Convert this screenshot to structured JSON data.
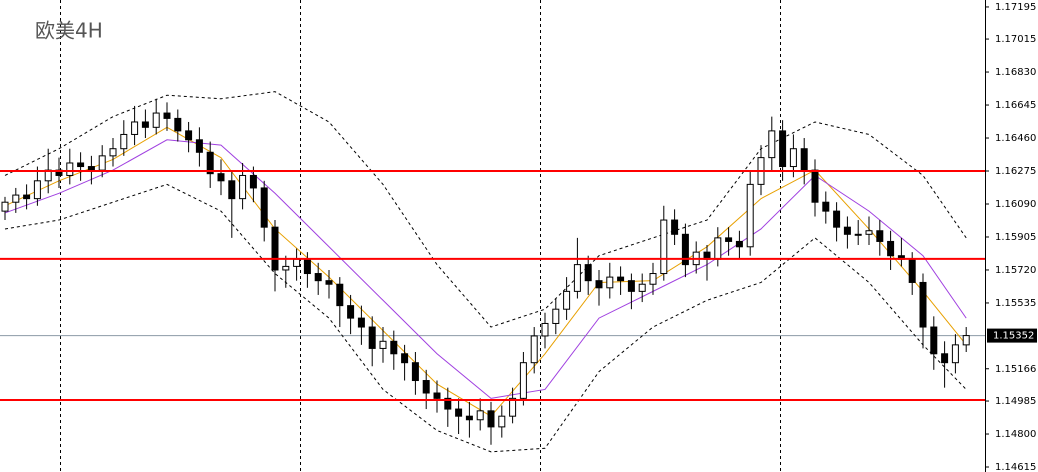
{
  "chart_data": {
    "type": "candlestick",
    "title": "欧美4H",
    "ylim": [
      1.14587,
      1.17234
    ],
    "yticks": [
      1.17195,
      1.17015,
      {
        "value": 1.1683,
        "label": "1.16830"
      },
      1.16645,
      {
        "value": 1.1646,
        "label": "1.16460"
      },
      1.16275,
      {
        "value": 1.1609,
        "label": "1.16090"
      },
      1.15905,
      {
        "value": 1.1572,
        "label": "1.15720"
      },
      1.15535,
      1.15166,
      1.14985,
      {
        "value": 1.148,
        "label": "1.14800"
      },
      1.14615
    ],
    "current_price": 1.15352,
    "up_color": "#ffffff",
    "down_color": "#000000",
    "hlines": [
      1.16275,
      1.15782,
      1.14991
    ],
    "hline_color": "#ff0000",
    "ohlc": [
      [
        1.1605,
        1.1613,
        1.16,
        1.161
      ],
      [
        1.161,
        1.1618,
        1.1604,
        1.1614
      ],
      [
        1.1614,
        1.162,
        1.1606,
        1.1612
      ],
      [
        1.1612,
        1.163,
        1.1608,
        1.1622
      ],
      [
        1.1622,
        1.164,
        1.1615,
        1.1628
      ],
      [
        1.1628,
        1.1635,
        1.1618,
        1.1625
      ],
      [
        1.1625,
        1.164,
        1.162,
        1.1632
      ],
      [
        1.1632,
        1.1638,
        1.1622,
        1.163
      ],
      [
        1.163,
        1.1636,
        1.162,
        1.1628
      ],
      [
        1.1628,
        1.1642,
        1.1624,
        1.1636
      ],
      [
        1.1636,
        1.1646,
        1.163,
        1.164
      ],
      [
        1.164,
        1.1656,
        1.1636,
        1.1648
      ],
      [
        1.1648,
        1.1664,
        1.1642,
        1.1655
      ],
      [
        1.1655,
        1.1662,
        1.1646,
        1.1652
      ],
      [
        1.1652,
        1.1668,
        1.1648,
        1.166
      ],
      [
        1.166,
        1.1666,
        1.165,
        1.1657
      ],
      [
        1.1657,
        1.1662,
        1.1644,
        1.165
      ],
      [
        1.165,
        1.1655,
        1.1638,
        1.1645
      ],
      [
        1.1645,
        1.1652,
        1.163,
        1.1638
      ],
      [
        1.1638,
        1.1644,
        1.1618,
        1.1626
      ],
      [
        1.1626,
        1.1634,
        1.1614,
        1.1622
      ],
      [
        1.1622,
        1.1628,
        1.159,
        1.1612
      ],
      [
        1.1612,
        1.1632,
        1.1606,
        1.1625
      ],
      [
        1.1625,
        1.163,
        1.161,
        1.1618
      ],
      [
        1.1618,
        1.1622,
        1.1588,
        1.1596
      ],
      [
        1.1596,
        1.16,
        1.156,
        1.1572
      ],
      [
        1.1572,
        1.158,
        1.1562,
        1.1574
      ],
      [
        1.1574,
        1.1584,
        1.1566,
        1.1578
      ],
      [
        1.1578,
        1.1582,
        1.1562,
        1.157
      ],
      [
        1.157,
        1.1576,
        1.1558,
        1.1566
      ],
      [
        1.1566,
        1.1572,
        1.1556,
        1.1564
      ],
      [
        1.1564,
        1.1568,
        1.154,
        1.1552
      ],
      [
        1.1552,
        1.1558,
        1.1536,
        1.1545
      ],
      [
        1.1545,
        1.1552,
        1.153,
        1.154
      ],
      [
        1.154,
        1.1546,
        1.1518,
        1.1528
      ],
      [
        1.1528,
        1.154,
        1.152,
        1.1532
      ],
      [
        1.1532,
        1.1538,
        1.1516,
        1.1525
      ],
      [
        1.1525,
        1.153,
        1.151,
        1.152
      ],
      [
        1.152,
        1.1526,
        1.1502,
        1.151
      ],
      [
        1.151,
        1.1516,
        1.1494,
        1.1503
      ],
      [
        1.1503,
        1.151,
        1.1492,
        1.15
      ],
      [
        1.15,
        1.1506,
        1.1484,
        1.1494
      ],
      [
        1.1494,
        1.15,
        1.148,
        1.149
      ],
      [
        1.149,
        1.1498,
        1.1478,
        1.1488
      ],
      [
        1.1488,
        1.15,
        1.1482,
        1.1493
      ],
      [
        1.1493,
        1.1498,
        1.1474,
        1.1484
      ],
      [
        1.1484,
        1.1496,
        1.1478,
        1.149
      ],
      [
        1.149,
        1.1506,
        1.1486,
        1.15
      ],
      [
        1.15,
        1.1526,
        1.1496,
        1.152
      ],
      [
        1.152,
        1.154,
        1.1514,
        1.1535
      ],
      [
        1.1535,
        1.1548,
        1.1528,
        1.1542
      ],
      [
        1.1542,
        1.1556,
        1.1536,
        1.155
      ],
      [
        1.155,
        1.1568,
        1.1544,
        1.156
      ],
      [
        1.156,
        1.159,
        1.1556,
        1.1575
      ],
      [
        1.1575,
        1.158,
        1.1558,
        1.1566
      ],
      [
        1.1566,
        1.1572,
        1.1552,
        1.1562
      ],
      [
        1.1562,
        1.1576,
        1.1556,
        1.1568
      ],
      [
        1.1568,
        1.1574,
        1.1558,
        1.1566
      ],
      [
        1.1566,
        1.157,
        1.155,
        1.156
      ],
      [
        1.156,
        1.157,
        1.1554,
        1.1564
      ],
      [
        1.1564,
        1.1576,
        1.1558,
        1.157
      ],
      [
        1.157,
        1.1608,
        1.1566,
        1.16
      ],
      [
        1.16,
        1.1606,
        1.1586,
        1.1592
      ],
      [
        1.1592,
        1.1598,
        1.1568,
        1.1575
      ],
      [
        1.1575,
        1.1588,
        1.157,
        1.1582
      ],
      [
        1.1582,
        1.1586,
        1.1566,
        1.1578
      ],
      [
        1.1578,
        1.1596,
        1.1574,
        1.159
      ],
      [
        1.159,
        1.1596,
        1.158,
        1.1588
      ],
      [
        1.1588,
        1.1594,
        1.1578,
        1.1585
      ],
      [
        1.1585,
        1.1628,
        1.158,
        1.162
      ],
      [
        1.162,
        1.1642,
        1.1614,
        1.1635
      ],
      [
        1.1635,
        1.1658,
        1.1628,
        1.165
      ],
      [
        1.165,
        1.1656,
        1.1622,
        1.163
      ],
      [
        1.163,
        1.1648,
        1.1624,
        1.164
      ],
      [
        1.164,
        1.1646,
        1.162,
        1.1628
      ],
      [
        1.1628,
        1.1634,
        1.1602,
        1.161
      ],
      [
        1.161,
        1.1616,
        1.1598,
        1.1605
      ],
      [
        1.1605,
        1.161,
        1.1588,
        1.1596
      ],
      [
        1.1596,
        1.1602,
        1.1584,
        1.1592
      ],
      [
        1.1592,
        1.16,
        1.1586,
        1.1592
      ],
      [
        1.1592,
        1.1602,
        1.1586,
        1.1594
      ],
      [
        1.1594,
        1.16,
        1.158,
        1.1588
      ],
      [
        1.1588,
        1.1594,
        1.1572,
        1.158
      ],
      [
        1.158,
        1.159,
        1.1574,
        1.1578
      ],
      [
        1.1578,
        1.1582,
        1.1558,
        1.1565
      ],
      [
        1.1565,
        1.157,
        1.1528,
        1.154
      ],
      [
        1.154,
        1.1546,
        1.1516,
        1.1525
      ],
      [
        1.1525,
        1.1532,
        1.1506,
        1.152
      ],
      [
        1.152,
        1.1536,
        1.1514,
        1.153
      ],
      [
        1.153,
        1.154,
        1.1526,
        1.15352
      ]
    ],
    "overlay_x": [
      0,
      5,
      10,
      15,
      20,
      25,
      30,
      35,
      40,
      45,
      50,
      55,
      60,
      65,
      70,
      75,
      80,
      85,
      89
    ],
    "overlays": [
      {
        "color": "#e8a000",
        "style": "solid",
        "values": [
          1.1608,
          1.1622,
          1.1634,
          1.1652,
          1.1635,
          1.1595,
          1.1568,
          1.1538,
          1.1508,
          1.149,
          1.1525,
          1.1565,
          1.1566,
          1.1585,
          1.1612,
          1.1628,
          1.1595,
          1.156,
          1.153
        ]
      },
      {
        "color": "#a040e0",
        "style": "solid",
        "values": [
          1.1604,
          1.1615,
          1.1628,
          1.1645,
          1.1642,
          1.1615,
          1.1585,
          1.1555,
          1.1525,
          1.15,
          1.1505,
          1.1545,
          1.156,
          1.1575,
          1.1595,
          1.1625,
          1.1605,
          1.158,
          1.1545
        ]
      },
      {
        "color": "#000000",
        "style": "dashed",
        "values": [
          1.1625,
          1.164,
          1.1658,
          1.167,
          1.1668,
          1.1672,
          1.1655,
          1.162,
          1.1575,
          1.154,
          1.155,
          1.158,
          1.159,
          1.16,
          1.164,
          1.1655,
          1.1648,
          1.1625,
          1.159
        ]
      },
      {
        "color": "#000000",
        "style": "dashed",
        "values": [
          1.1595,
          1.16,
          1.161,
          1.162,
          1.1605,
          1.157,
          1.1545,
          1.1505,
          1.1482,
          1.147,
          1.1472,
          1.1515,
          1.154,
          1.1555,
          1.1565,
          1.159,
          1.1565,
          1.153,
          1.1505
        ]
      }
    ]
  }
}
